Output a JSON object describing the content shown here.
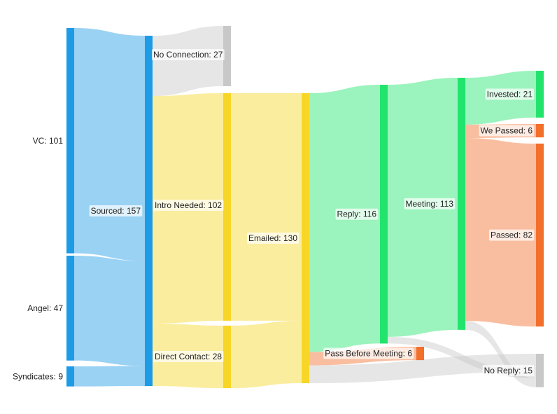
{
  "chart_data": {
    "type": "sankey",
    "title": "",
    "nodes": [
      {
        "id": "vc",
        "name": "VC",
        "value": 101,
        "color": "#1e9be6",
        "label": "VC: 101"
      },
      {
        "id": "angel",
        "name": "Angel",
        "value": 47,
        "color": "#1e9be6",
        "label": "Angel: 47"
      },
      {
        "id": "syndicates",
        "name": "Syndicates",
        "value": 9,
        "color": "#1e9be6",
        "label": "Syndicates: 9"
      },
      {
        "id": "sourced",
        "name": "Sourced",
        "value": 157,
        "color": "#1e9be6",
        "label": "Sourced: 157"
      },
      {
        "id": "noconn",
        "name": "No Connection",
        "value": 27,
        "color": "#c8c8c8",
        "label": "No Connection: 27"
      },
      {
        "id": "intro",
        "name": "Intro Needed",
        "value": 102,
        "color": "#f7d627",
        "label": "Intro Needed: 102"
      },
      {
        "id": "direct",
        "name": "Direct Contact",
        "value": 28,
        "color": "#f7d627",
        "label": "Direct Contact: 28"
      },
      {
        "id": "emailed",
        "name": "Emailed",
        "value": 130,
        "color": "#f7d627",
        "label": "Emailed: 130"
      },
      {
        "id": "reply",
        "name": "Reply",
        "value": 116,
        "color": "#22e46c",
        "label": "Reply: 116"
      },
      {
        "id": "pbm",
        "name": "Pass Before Meeting",
        "value": 6,
        "color": "#f26f2c",
        "label": "Pass Before Meeting: 6"
      },
      {
        "id": "meeting",
        "name": "Meeting",
        "value": 113,
        "color": "#22e46c",
        "label": "Meeting: 113"
      },
      {
        "id": "invested",
        "name": "Invested",
        "value": 21,
        "color": "#22e46c",
        "label": "Invested: 21"
      },
      {
        "id": "wepassed",
        "name": "We Passed",
        "value": 6,
        "color": "#f26f2c",
        "label": "We Passed: 6"
      },
      {
        "id": "passed",
        "name": "Passed",
        "value": 82,
        "color": "#f26f2c",
        "label": "Passed: 82"
      },
      {
        "id": "noreply",
        "name": "No Reply",
        "value": 15,
        "color": "#c8c8c8",
        "label": "No Reply: 15"
      }
    ],
    "links": [
      {
        "source": "vc",
        "target": "sourced",
        "value": 101
      },
      {
        "source": "angel",
        "target": "sourced",
        "value": 47
      },
      {
        "source": "syndicates",
        "target": "sourced",
        "value": 9
      },
      {
        "source": "sourced",
        "target": "noconn",
        "value": 27
      },
      {
        "source": "sourced",
        "target": "intro",
        "value": 102
      },
      {
        "source": "sourced",
        "target": "direct",
        "value": 28
      },
      {
        "source": "intro",
        "target": "emailed",
        "value": 102
      },
      {
        "source": "direct",
        "target": "emailed",
        "value": 28
      },
      {
        "source": "emailed",
        "target": "reply",
        "value": 116
      },
      {
        "source": "emailed",
        "target": "pbm",
        "value": 6
      },
      {
        "source": "emailed",
        "target": "noreply",
        "value": 8
      },
      {
        "source": "reply",
        "target": "meeting",
        "value": 113
      },
      {
        "source": "reply",
        "target": "noreply",
        "value": 3
      },
      {
        "source": "meeting",
        "target": "invested",
        "value": 21
      },
      {
        "source": "meeting",
        "target": "wepassed",
        "value": 6
      },
      {
        "source": "meeting",
        "target": "passed",
        "value": 82
      },
      {
        "source": "meeting",
        "target": "noreply",
        "value": 4
      }
    ]
  }
}
